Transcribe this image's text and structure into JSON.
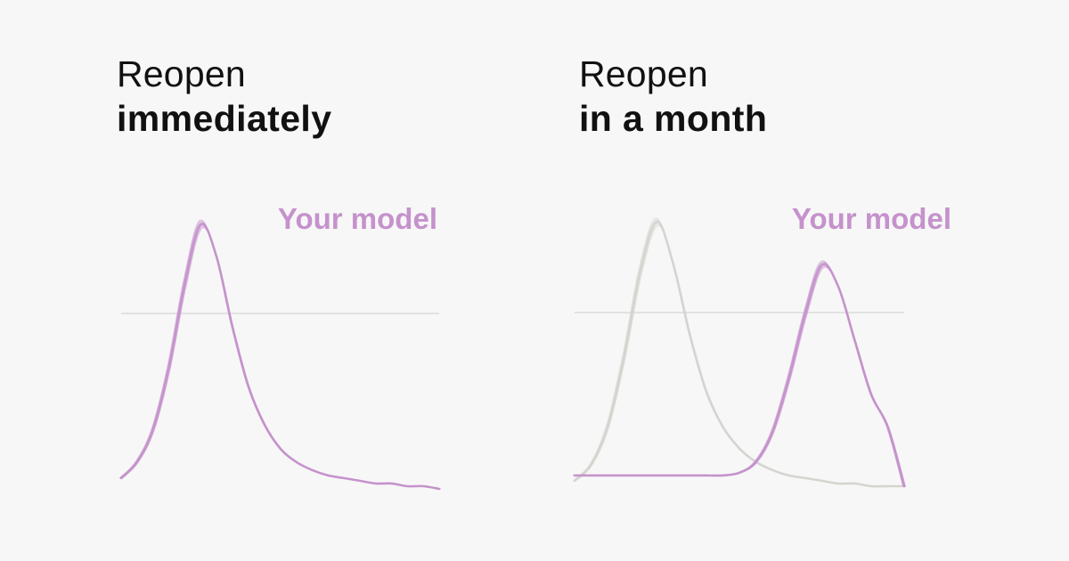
{
  "colors": {
    "background": "#f7f7f7",
    "model": "#c592cc",
    "baseline": "#d6d6d6",
    "reference": "#d4d4d0",
    "title": "#111111"
  },
  "chart_data": [
    {
      "type": "line",
      "title_light": "Reopen",
      "title_bold": "immediately",
      "annotation": "Your model",
      "grid": false,
      "reference_line": true,
      "series": [
        {
          "role": "model",
          "color": "#c592cc",
          "x": [
            0,
            5,
            10,
            15,
            20,
            25,
            30,
            35,
            40,
            45,
            50,
            55,
            60,
            65,
            70,
            75,
            80,
            85,
            90,
            95,
            100
          ],
          "values": [
            4,
            10,
            22,
            45,
            76,
            98,
            86,
            60,
            38,
            24,
            15,
            10,
            7,
            5,
            4,
            3,
            2,
            2,
            1,
            1,
            0
          ]
        }
      ]
    },
    {
      "type": "line",
      "title_light": "Reopen",
      "title_bold": "in a month",
      "annotation": "Your model",
      "grid": false,
      "reference_line": true,
      "series": [
        {
          "role": "reference",
          "color": "#d4d4d0",
          "x": [
            0,
            5,
            10,
            15,
            20,
            25,
            30,
            35,
            40,
            45,
            50,
            55,
            60,
            65,
            70,
            75,
            80,
            85,
            90,
            95,
            100
          ],
          "values": [
            2,
            8,
            22,
            48,
            80,
            98,
            82,
            56,
            35,
            22,
            14,
            9,
            6,
            4,
            3,
            2,
            1,
            1,
            0,
            0,
            0
          ]
        },
        {
          "role": "model",
          "color": "#c592cc",
          "x": [
            0,
            5,
            10,
            15,
            20,
            25,
            30,
            35,
            40,
            45,
            50,
            55,
            60,
            65,
            70,
            75,
            80,
            85,
            90,
            95,
            100
          ],
          "values": [
            4,
            4,
            4,
            4,
            4,
            4,
            4,
            4,
            4,
            4,
            5,
            9,
            20,
            40,
            64,
            82,
            74,
            54,
            34,
            22,
            0
          ]
        }
      ]
    }
  ]
}
